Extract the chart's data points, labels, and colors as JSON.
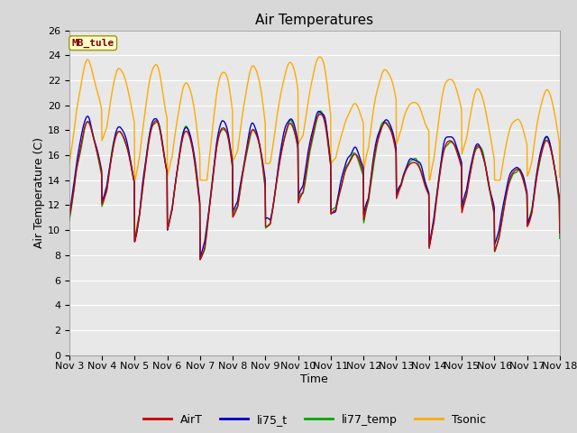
{
  "title": "Air Temperatures",
  "xlabel": "Time",
  "ylabel": "Air Temperature (C)",
  "annotation": "MB_tule",
  "ylim": [
    0,
    26
  ],
  "yticks": [
    0,
    2,
    4,
    6,
    8,
    10,
    12,
    14,
    16,
    18,
    20,
    22,
    24,
    26
  ],
  "x_labels": [
    "Nov 3",
    "Nov 4",
    "Nov 5",
    "Nov 6",
    "Nov 7",
    "Nov 8",
    "Nov 9",
    "Nov 10",
    "Nov 11",
    "Nov 12",
    "Nov 13",
    "Nov 14",
    "Nov 15",
    "Nov 16",
    "Nov 17",
    "Nov 18"
  ],
  "series": {
    "AirT": {
      "color": "#cc0000",
      "lw": 1.0
    },
    "li75_t": {
      "color": "#0000cc",
      "lw": 1.0
    },
    "li77_temp": {
      "color": "#00aa00",
      "lw": 1.0
    },
    "Tsonic": {
      "color": "#ffaa00",
      "lw": 1.0
    }
  },
  "background_color": "#d8d8d8",
  "plot_bg_color": "#e8e8e8",
  "grid_color": "#ffffff",
  "title_fontsize": 11,
  "axis_fontsize": 9,
  "tick_fontsize": 8
}
